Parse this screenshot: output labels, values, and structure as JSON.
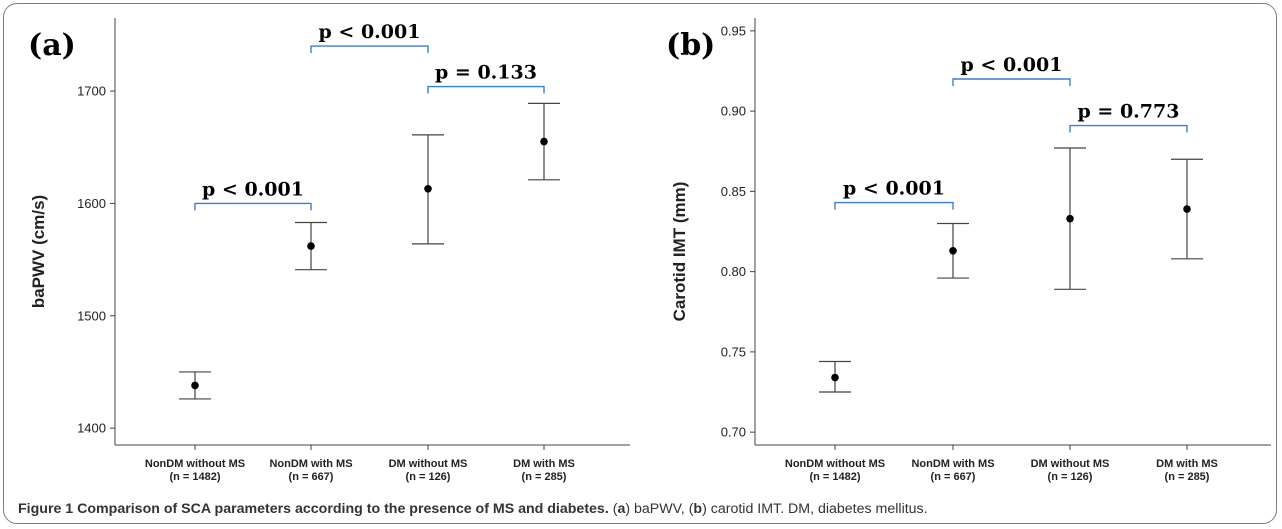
{
  "caption": {
    "label": "Figure 1",
    "title": "Comparison of SCA parameters according to the presence of MS and diabetes.",
    "p1": "(",
    "a": "a",
    "p2": ") baPWV, (",
    "b": "b",
    "p3": ") carotid IMT. DM, diabetes mellitus."
  },
  "chart_data": [
    {
      "type": "scatter",
      "panel_label": "(a)",
      "ylabel": "baPWV (cm/s)",
      "ylim": [
        1385,
        1765
      ],
      "yticks": [
        "1400",
        "1500",
        "1600",
        "1700"
      ],
      "ytick_values": [
        1400,
        1500,
        1600,
        1700
      ],
      "categories": [
        {
          "name": "NonDM without MS",
          "n": "(n = 1482)"
        },
        {
          "name": "NonDM with MS",
          "n": "(n = 667)"
        },
        {
          "name": "DM without MS",
          "n": "(n = 126)"
        },
        {
          "name": "DM with MS",
          "n": "(n = 285)"
        }
      ],
      "mean": [
        1438,
        1562,
        1613,
        1655
      ],
      "ci_low": [
        1426,
        1541,
        1564,
        1621
      ],
      "ci_high": [
        1450,
        1583,
        1661,
        1689
      ],
      "comparisons": [
        {
          "from": 0,
          "to": 1,
          "level": 1600,
          "label": "p < 0.001"
        },
        {
          "from": 2,
          "to": 3,
          "level": 1704,
          "label": "p = 0.133"
        },
        {
          "from": 1,
          "to": 2,
          "level": 1740,
          "label": "p < 0.001"
        }
      ]
    },
    {
      "type": "scatter",
      "panel_label": "(b)",
      "ylabel": "Carotid IMT (mm)",
      "ylim": [
        0.692,
        0.958
      ],
      "yticks": [
        "0.70",
        "0.75",
        "0.80",
        "0.85",
        "0.90",
        "0.95"
      ],
      "ytick_values": [
        0.7,
        0.75,
        0.8,
        0.85,
        0.9,
        0.95
      ],
      "categories": [
        {
          "name": "NonDM without MS",
          "n": "(n = 1482)"
        },
        {
          "name": "NonDM with MS",
          "n": "(n = 667)"
        },
        {
          "name": "DM without MS",
          "n": "(n = 126)"
        },
        {
          "name": "DM with MS",
          "n": "(n = 285)"
        }
      ],
      "mean": [
        0.734,
        0.813,
        0.833,
        0.839
      ],
      "ci_low": [
        0.725,
        0.796,
        0.789,
        0.808
      ],
      "ci_high": [
        0.744,
        0.83,
        0.877,
        0.87
      ],
      "comparisons": [
        {
          "from": 0,
          "to": 1,
          "level": 0.843,
          "label": "p < 0.001"
        },
        {
          "from": 2,
          "to": 3,
          "level": 0.891,
          "label": "p = 0.773"
        },
        {
          "from": 1,
          "to": 2,
          "level": 0.92,
          "label": "p < 0.001"
        }
      ]
    }
  ]
}
